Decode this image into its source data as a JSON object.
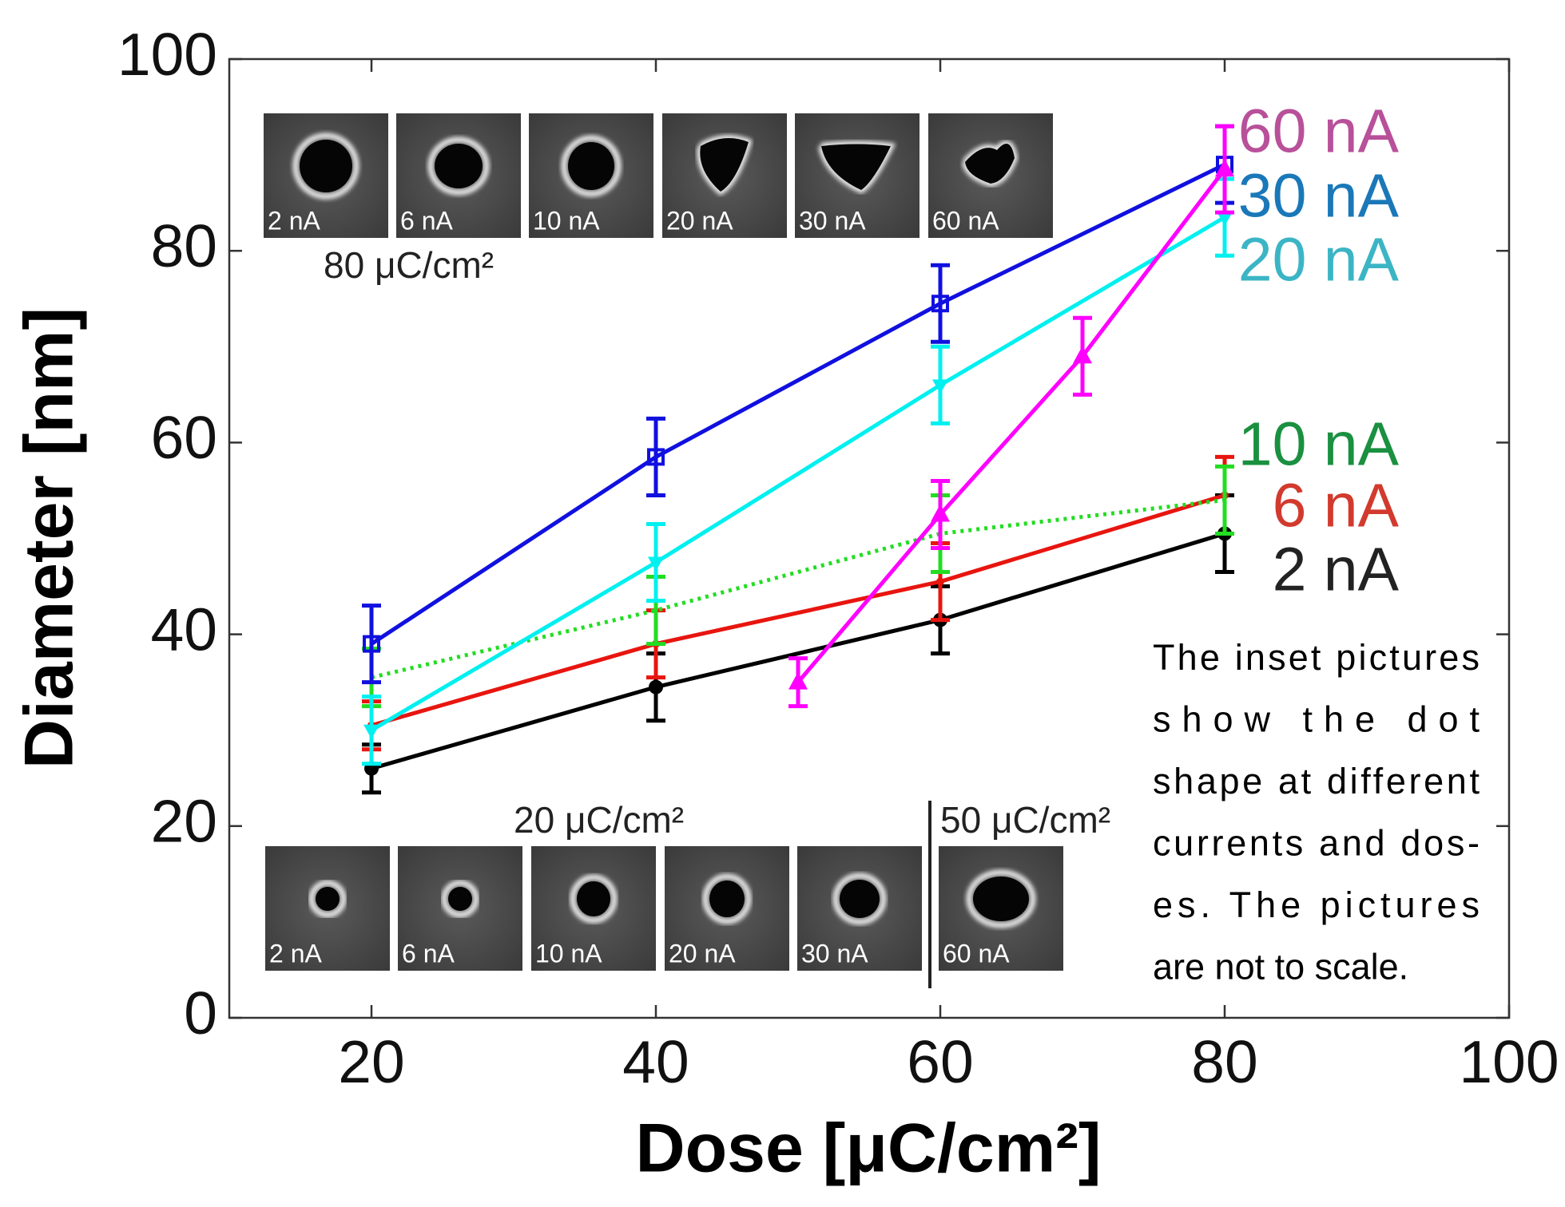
{
  "chart_data": {
    "type": "line",
    "xlabel": "Dose [μC/cm²]",
    "ylabel": "Diameter [nm]",
    "xlim": [
      10,
      100
    ],
    "ylim": [
      0,
      100
    ],
    "xticks": [
      20,
      40,
      60,
      80,
      100
    ],
    "yticks": [
      0,
      20,
      40,
      60,
      80,
      100
    ],
    "series": [
      {
        "name": "2 nA",
        "color": "#000000",
        "label_color": "#222222",
        "marker": "circle",
        "x": [
          20,
          40,
          60,
          80
        ],
        "values": [
          26,
          34.5,
          41.5,
          50.5
        ],
        "errors": [
          2.5,
          3.5,
          3.5,
          4
        ]
      },
      {
        "name": "6 nA",
        "color": "#e8150f",
        "label_color": "#d23a2e",
        "marker": "dot",
        "x": [
          20,
          40,
          60,
          80
        ],
        "values": [
          30.5,
          39,
          45.5,
          54.5
        ],
        "errors": [
          2.5,
          3.5,
          4,
          4
        ]
      },
      {
        "name": "10 nA",
        "color": "#22dd22",
        "label_color": "#1a9040",
        "marker": "none",
        "linestyle": "dotted",
        "x": [
          20,
          40,
          60,
          80
        ],
        "values": [
          35.5,
          42.5,
          50.5,
          54
        ],
        "errors": [
          3,
          3.5,
          4,
          3.5
        ]
      },
      {
        "name": "20 nA",
        "color": "#00f0f0",
        "label_color": "#3bb5c5",
        "marker": "triangle-down",
        "x": [
          20,
          40,
          60,
          80
        ],
        "values": [
          30,
          47.5,
          66,
          83.5
        ],
        "errors": [
          3.5,
          4,
          4,
          4
        ]
      },
      {
        "name": "30 nA",
        "color": "#1010e0",
        "label_color": "#1a78b8",
        "marker": "square",
        "x": [
          20,
          40,
          60,
          80
        ],
        "values": [
          39,
          58.5,
          74.5,
          89
        ],
        "errors": [
          4,
          4,
          4,
          4
        ]
      },
      {
        "name": "60 nA",
        "color": "#ff00ff",
        "label_color": "#b8509a",
        "marker": "triangle",
        "x": [
          50,
          60,
          70,
          80
        ],
        "values": [
          35,
          52.5,
          69,
          88.5
        ],
        "errors": [
          2.5,
          3.5,
          4,
          4.5
        ]
      }
    ]
  },
  "insets": {
    "top": {
      "dose": "80 μC/cm²",
      "labels": [
        "2 nA",
        "6 nA",
        "10 nA",
        "20 nA",
        "30 nA",
        "60 nA"
      ]
    },
    "bottom": {
      "dose_left": "20 μC/cm²",
      "dose_right": "50 μC/cm²",
      "labels": [
        "2 nA",
        "6 nA",
        "10 nA",
        "20 nA",
        "30 nA",
        "60 nA"
      ]
    }
  },
  "note": {
    "lines": [
      "The inset pictures",
      "show the dot",
      "shape at different",
      "currents and dos-",
      "es. The pictures",
      "are not to scale."
    ]
  }
}
